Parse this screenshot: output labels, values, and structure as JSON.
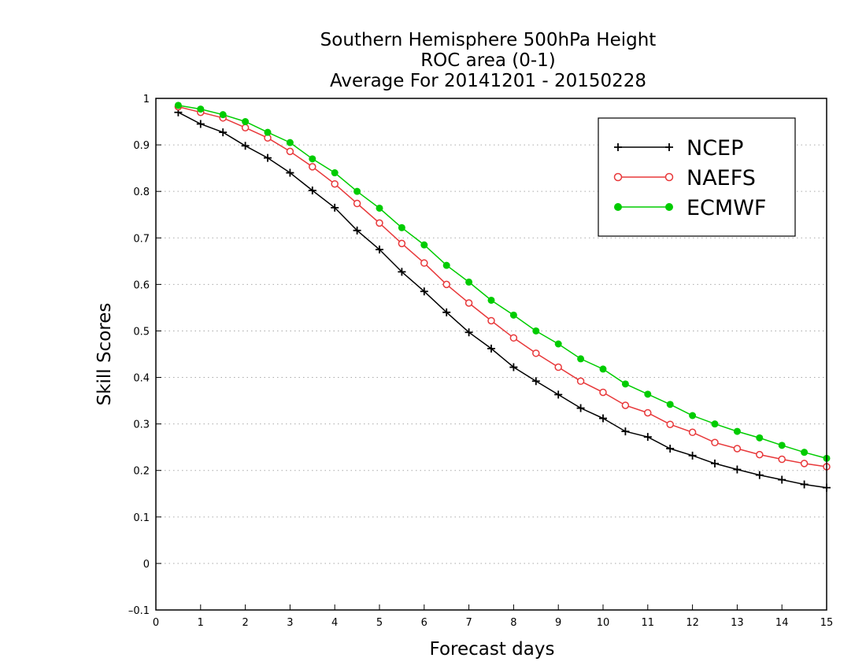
{
  "chart_data": {
    "type": "line",
    "title_lines": [
      "Southern Hemisphere 500hPa Height",
      "ROC area (0-1)",
      "Average For 20141201 - 20150228"
    ],
    "xlabel": "Forecast days",
    "ylabel": "Skill Scores",
    "xlim": [
      0,
      15
    ],
    "ylim": [
      -0.1,
      1
    ],
    "xticks": [
      0,
      1,
      2,
      3,
      4,
      5,
      6,
      7,
      8,
      9,
      10,
      11,
      12,
      13,
      14,
      15
    ],
    "yticks": [
      -0.1,
      0,
      0.1,
      0.2,
      0.3,
      0.4,
      0.5,
      0.6,
      0.7,
      0.8,
      0.9,
      1
    ],
    "xtick_labels": [
      "0",
      "1",
      "2",
      "3",
      "4",
      "5",
      "6",
      "7",
      "8",
      "9",
      "10",
      "11",
      "12",
      "13",
      "14",
      "15"
    ],
    "ytick_labels": [
      "–0.1",
      "0",
      "0.1",
      "0.2",
      "0.3",
      "0.4",
      "0.5",
      "0.6",
      "0.7",
      "0.8",
      "0.9",
      "1"
    ],
    "grid": true,
    "legend_position": "top-right",
    "x": [
      0.5,
      1,
      1.5,
      2,
      2.5,
      3,
      3.5,
      4,
      4.5,
      5,
      5.5,
      6,
      6.5,
      7,
      7.5,
      8,
      8.5,
      9,
      9.5,
      10,
      10.5,
      11,
      11.5,
      12,
      12.5,
      13,
      13.5,
      14,
      14.5,
      15
    ],
    "series": [
      {
        "name": "NCEP",
        "color": "#000000",
        "marker": "plus",
        "values": [
          0.97,
          0.945,
          0.927,
          0.898,
          0.872,
          0.84,
          0.802,
          0.765,
          0.716,
          0.675,
          0.627,
          0.585,
          0.54,
          0.497,
          0.462,
          0.422,
          0.392,
          0.363,
          0.334,
          0.312,
          0.284,
          0.272,
          0.247,
          0.232,
          0.215,
          0.202,
          0.19,
          0.18,
          0.17,
          0.163
        ]
      },
      {
        "name": "NAEFS",
        "color": "#e8383a",
        "marker": "open-circle",
        "values": [
          0.982,
          0.97,
          0.958,
          0.937,
          0.915,
          0.886,
          0.853,
          0.816,
          0.774,
          0.732,
          0.688,
          0.646,
          0.6,
          0.56,
          0.522,
          0.485,
          0.452,
          0.422,
          0.392,
          0.368,
          0.34,
          0.324,
          0.299,
          0.282,
          0.26,
          0.247,
          0.234,
          0.224,
          0.215,
          0.208
        ]
      },
      {
        "name": "ECMWF",
        "color": "#00cc00",
        "marker": "filled-circle",
        "values": [
          0.985,
          0.977,
          0.965,
          0.95,
          0.927,
          0.905,
          0.87,
          0.84,
          0.8,
          0.764,
          0.722,
          0.685,
          0.641,
          0.605,
          0.566,
          0.534,
          0.5,
          0.472,
          0.44,
          0.418,
          0.386,
          0.364,
          0.342,
          0.318,
          0.3,
          0.284,
          0.27,
          0.254,
          0.239,
          0.226
        ]
      }
    ]
  }
}
